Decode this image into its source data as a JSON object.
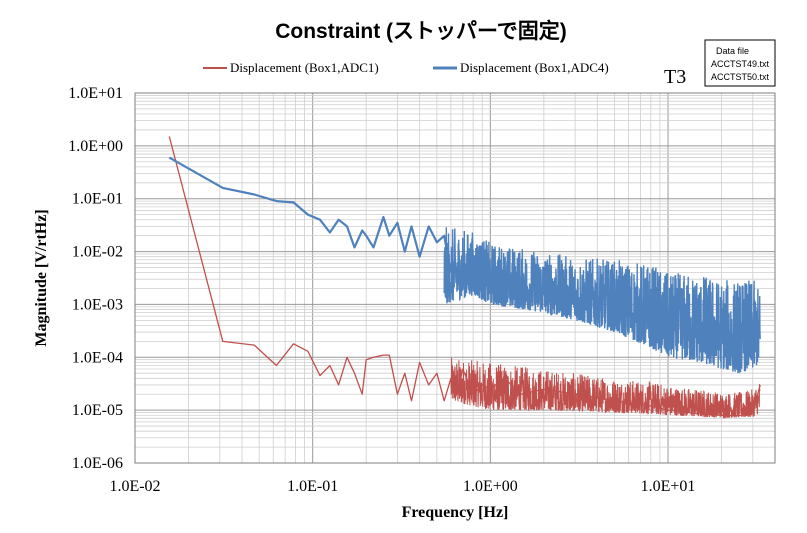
{
  "chart_data": {
    "type": "line",
    "title": "Constraint (ストッパーで固定)",
    "xlabel": "Frequency [Hz]",
    "ylabel": "Magnitude [V/rtHz]",
    "x_scale": "log",
    "y_scale": "log",
    "xlim": [
      0.01,
      40
    ],
    "ylim": [
      1e-06,
      10
    ],
    "x_ticks": [
      "1.0E-02",
      "1.0E-01",
      "1.0E+00",
      "1.0E+01"
    ],
    "y_ticks": [
      "1.0E+01",
      "1.0E+00",
      "1.0E-01",
      "1.0E-02",
      "1.0E-03",
      "1.0E-04",
      "1.0E-05",
      "1.0E-06"
    ],
    "grid": true,
    "legend_position": "top",
    "annotation_tag": "T3",
    "data_file_box": {
      "title": "Data file",
      "files": [
        "ACCTST49.txt",
        "ACCTST50.txt"
      ]
    },
    "series": [
      {
        "name": "Displacement (Box1,ADC1)",
        "color": "#c0504d",
        "x": [
          0.0156,
          0.0312,
          0.0469,
          0.0625,
          0.078,
          0.094,
          0.11,
          0.125,
          0.14,
          0.156,
          0.172,
          0.19,
          0.2,
          0.22,
          0.25,
          0.27,
          0.3,
          0.33,
          0.36,
          0.4,
          0.45,
          0.5,
          0.55,
          0.6,
          0.65,
          0.7,
          0.8,
          0.9,
          1.0,
          1.2,
          1.5,
          2,
          3,
          5,
          8,
          10,
          15,
          20,
          25,
          30,
          33
        ],
        "y": [
          1.5,
          0.0002,
          0.00017,
          7e-05,
          0.00018,
          0.00013,
          4.5e-05,
          7e-05,
          3e-05,
          0.0001,
          5e-05,
          2e-05,
          9e-05,
          0.0001,
          0.00011,
          0.00011,
          2e-05,
          5e-05,
          1.5e-05,
          8e-05,
          3e-05,
          5e-05,
          1.5e-05,
          4e-05,
          2e-05,
          6e-05,
          2e-05,
          3e-05,
          2.5e-05,
          4e-05,
          2e-05,
          2.5e-05,
          2e-05,
          1.5e-05,
          1.2e-05,
          1e-05,
          8.5e-06,
          8e-06,
          7.8e-06,
          9e-06,
          3e-05
        ],
        "noise_envelope": {
          "x": [
            0.6,
            1,
            2,
            3,
            5,
            8,
            10,
            15,
            20,
            25,
            30,
            33
          ],
          "low": [
            1.5e-05,
            1e-05,
            1e-05,
            9.5e-06,
            9e-06,
            8.5e-06,
            8e-06,
            7.5e-06,
            7.2e-06,
            7.2e-06,
            7.4e-06,
            9e-06
          ],
          "high": [
            0.0001,
            8e-05,
            6e-05,
            5e-05,
            4e-05,
            3.5e-05,
            3e-05,
            2.5e-05,
            2.2e-05,
            2.2e-05,
            2.5e-05,
            4e-05
          ]
        }
      },
      {
        "name": "Displacement (Box1,ADC4)",
        "color": "#4f81bd",
        "x": [
          0.0156,
          0.0312,
          0.0469,
          0.0625,
          0.078,
          0.094,
          0.11,
          0.125,
          0.14,
          0.156,
          0.172,
          0.19,
          0.2,
          0.22,
          0.25,
          0.27,
          0.3,
          0.33,
          0.36,
          0.4,
          0.45,
          0.5,
          0.55,
          0.6
        ],
        "y": [
          0.6,
          0.16,
          0.12,
          0.09,
          0.085,
          0.05,
          0.04,
          0.023,
          0.04,
          0.03,
          0.012,
          0.025,
          0.02,
          0.012,
          0.045,
          0.02,
          0.035,
          0.01,
          0.03,
          0.008,
          0.03,
          0.015,
          0.02,
          0.004
        ],
        "noise_envelope": {
          "x": [
            0.55,
            0.8,
            1,
            2,
            3,
            5,
            8,
            10,
            15,
            20,
            25,
            30,
            33
          ],
          "low": [
            0.001,
            0.0015,
            0.001,
            0.0007,
            0.0005,
            0.0003,
            0.00015,
            0.0001,
            8e-05,
            6e-05,
            5e-05,
            6e-05,
            8e-05
          ],
          "high": [
            0.03,
            0.025,
            0.015,
            0.01,
            0.008,
            0.007,
            0.006,
            0.004,
            0.004,
            0.003,
            0.003,
            0.003,
            0.002
          ]
        }
      }
    ]
  }
}
